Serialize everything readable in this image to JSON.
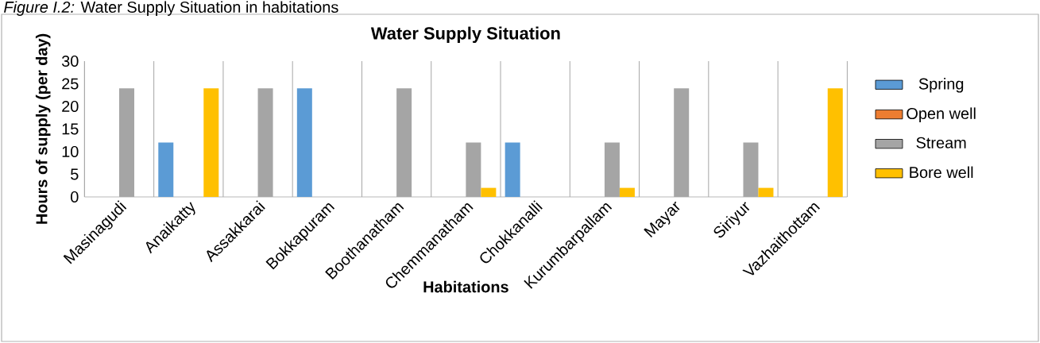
{
  "chart_data": {
    "type": "bar",
    "title": "Water Supply Situation",
    "xlabel": "Habitations",
    "ylabel": "Hours of supply (per day)",
    "annotations": [
      "*Figure I.2:* Water Supply Situation in habitations"
    ],
    "categories": [
      "Masinagudi",
      "Anaikatty",
      "Assakkarai",
      "Bokkapuram",
      "Boothanatham",
      "Chemmanatham",
      "Chokkanalli",
      "Kurumbarpallam",
      "Mayar",
      "Siriyur",
      "Vazhaithottam"
    ],
    "series": [
      {
        "name": "Spring",
        "color": "#5b9bd5",
        "values": [
          null,
          12,
          null,
          24,
          null,
          null,
          12,
          null,
          null,
          null,
          null
        ]
      },
      {
        "name": "Open well",
        "color": "#ed7d31",
        "values": [
          null,
          null,
          null,
          null,
          null,
          null,
          null,
          null,
          null,
          null,
          null
        ]
      },
      {
        "name": "Stream",
        "color": "#a5a5a5",
        "values": [
          24,
          null,
          24,
          null,
          24,
          12,
          null,
          12,
          24,
          12,
          null
        ]
      },
      {
        "name": "Bore well",
        "color": "#ffc000",
        "values": [
          null,
          24,
          null,
          null,
          null,
          2,
          null,
          2,
          null,
          2,
          24
        ]
      }
    ],
    "ylim": [
      0,
      30
    ],
    "yticks": [
      0,
      5,
      10,
      15,
      20,
      25,
      30
    ],
    "grid": "x",
    "legend": "right"
  }
}
